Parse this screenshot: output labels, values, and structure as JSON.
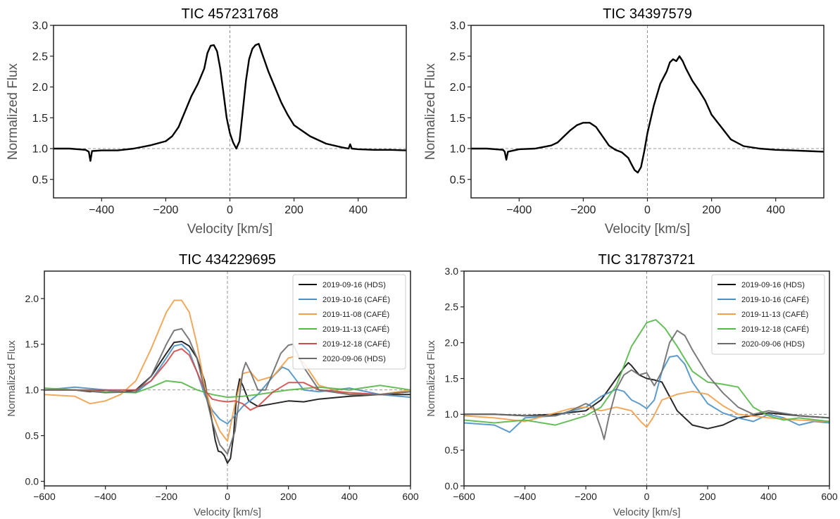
{
  "chart_data": [
    {
      "type": "line",
      "title": "TIC 457231768",
      "xlabel": "Velocity [km/s]",
      "ylabel": "Normalized Flux",
      "xlim": [
        -550,
        550
      ],
      "ylim": [
        0.2,
        3.0
      ],
      "xticks": [
        -400,
        -200,
        0,
        200,
        400
      ],
      "yticks": [
        0.5,
        1.0,
        1.5,
        2.0,
        2.5,
        3.0
      ],
      "xtick_labels": [
        "−400",
        "−200",
        "0",
        "200",
        "400"
      ],
      "ytick_labels": [
        "0.5",
        "1.0",
        "1.5",
        "2.0",
        "2.5",
        "3.0"
      ],
      "reference_lines": {
        "x": 0,
        "y": 1.0
      },
      "grid": false,
      "legend": "none",
      "series": [
        {
          "color": "#000000",
          "x": [
            -550,
            -500,
            -450,
            -440,
            -435,
            -430,
            -400,
            -350,
            -300,
            -250,
            -200,
            -180,
            -160,
            -140,
            -120,
            -100,
            -80,
            -70,
            -60,
            -50,
            -40,
            -30,
            -20,
            -10,
            0,
            10,
            20,
            30,
            40,
            50,
            60,
            70,
            80,
            90,
            100,
            110,
            120,
            140,
            160,
            180,
            200,
            250,
            300,
            350,
            370,
            375,
            380,
            400,
            450,
            500,
            550
          ],
          "y": [
            1.0,
            1.0,
            0.98,
            0.95,
            0.8,
            0.96,
            0.97,
            0.97,
            1.0,
            1.05,
            1.12,
            1.2,
            1.35,
            1.6,
            1.85,
            2.05,
            2.3,
            2.55,
            2.67,
            2.68,
            2.58,
            2.3,
            1.9,
            1.5,
            1.25,
            1.1,
            1.0,
            1.12,
            1.6,
            2.1,
            2.45,
            2.62,
            2.68,
            2.7,
            2.55,
            2.4,
            2.25,
            2.0,
            1.75,
            1.55,
            1.38,
            1.2,
            1.08,
            1.02,
            1.0,
            1.07,
            1.0,
            0.99,
            0.98,
            0.98,
            0.97
          ]
        }
      ]
    },
    {
      "type": "line",
      "title": "TIC 34397579",
      "xlabel": "Velocity [km/s]",
      "ylabel": "Normalized Flux",
      "xlim": [
        -550,
        550
      ],
      "ylim": [
        0.2,
        3.0
      ],
      "xticks": [
        -400,
        -200,
        0,
        200,
        400
      ],
      "yticks": [
        0.5,
        1.0,
        1.5,
        2.0,
        2.5,
        3.0
      ],
      "xtick_labels": [
        "−400",
        "−200",
        "0",
        "200",
        "400"
      ],
      "ytick_labels": [
        "0.5",
        "1.0",
        "1.5",
        "2.0",
        "2.5",
        "3.0"
      ],
      "reference_lines": {
        "x": 0,
        "y": 1.0
      },
      "grid": false,
      "legend": "none",
      "series": [
        {
          "color": "#000000",
          "x": [
            -550,
            -500,
            -450,
            -445,
            -440,
            -435,
            -400,
            -350,
            -300,
            -280,
            -260,
            -240,
            -220,
            -200,
            -180,
            -160,
            -140,
            -120,
            -100,
            -80,
            -60,
            -50,
            -40,
            -30,
            -20,
            -10,
            0,
            20,
            40,
            60,
            70,
            80,
            90,
            100,
            110,
            120,
            140,
            160,
            180,
            200,
            230,
            260,
            300,
            350,
            400,
            450,
            500,
            550
          ],
          "y": [
            1.0,
            1.0,
            0.98,
            0.95,
            0.82,
            0.95,
            0.99,
            1.0,
            1.05,
            1.1,
            1.2,
            1.3,
            1.38,
            1.42,
            1.42,
            1.35,
            1.2,
            1.05,
            0.98,
            0.94,
            0.85,
            0.75,
            0.65,
            0.61,
            0.7,
            0.95,
            1.25,
            1.7,
            2.05,
            2.25,
            2.4,
            2.45,
            2.42,
            2.5,
            2.42,
            2.3,
            2.1,
            1.95,
            1.78,
            1.55,
            1.35,
            1.15,
            1.04,
            1.0,
            0.98,
            0.97,
            0.96,
            0.95
          ]
        }
      ]
    },
    {
      "type": "line",
      "title": "TIC 434229695",
      "xlabel": "Velocity [km/s]",
      "ylabel": "Normalized Flux",
      "xlim": [
        -600,
        600
      ],
      "ylim": [
        -0.05,
        2.3
      ],
      "xticks": [
        -600,
        -400,
        -200,
        0,
        200,
        400,
        600
      ],
      "yticks": [
        0.0,
        0.5,
        1.0,
        1.5,
        2.0
      ],
      "xtick_labels": [
        "−600",
        "−400",
        "−200",
        "0",
        "200",
        "400",
        "600"
      ],
      "ytick_labels": [
        "0.0",
        "0.5",
        "1.0",
        "1.5",
        "2.0"
      ],
      "reference_lines": {
        "x": 0,
        "y": 1.0
      },
      "grid": false,
      "legend": "top-right",
      "series": [
        {
          "name": "2019-09-16 (HDS)",
          "color": "#111111",
          "x": [
            -600,
            -500,
            -450,
            -400,
            -350,
            -300,
            -250,
            -200,
            -175,
            -150,
            -125,
            -100,
            -75,
            -50,
            -40,
            -30,
            -20,
            -10,
            0,
            10,
            20,
            30,
            40,
            50,
            70,
            100,
            150,
            200,
            250,
            300,
            400,
            500,
            600
          ],
          "y": [
            1.0,
            1.0,
            0.98,
            1.0,
            0.98,
            1.0,
            1.15,
            1.4,
            1.52,
            1.53,
            1.48,
            1.35,
            1.1,
            0.65,
            0.45,
            0.33,
            0.32,
            0.28,
            0.2,
            0.25,
            0.5,
            0.95,
            1.12,
            1.05,
            0.88,
            0.82,
            0.85,
            0.88,
            0.87,
            0.9,
            0.93,
            0.95,
            0.95
          ]
        },
        {
          "name": "2019-10-16 (CAFÉ)",
          "color": "#4a90c4",
          "x": [
            -600,
            -500,
            -400,
            -300,
            -250,
            -200,
            -175,
            -150,
            -125,
            -100,
            -75,
            -50,
            -25,
            0,
            25,
            50,
            100,
            150,
            180,
            200,
            250,
            300,
            400,
            500,
            600
          ],
          "y": [
            1.0,
            1.03,
            1.0,
            0.97,
            1.1,
            1.35,
            1.48,
            1.5,
            1.42,
            1.2,
            0.95,
            0.78,
            0.68,
            0.63,
            0.72,
            0.82,
            0.95,
            1.15,
            1.25,
            1.22,
            1.0,
            0.98,
            1.02,
            0.95,
            0.92
          ]
        },
        {
          "name": "2019-11-08 (CAFÉ)",
          "color": "#f0a04b",
          "x": [
            -600,
            -500,
            -450,
            -400,
            -350,
            -300,
            -250,
            -200,
            -175,
            -150,
            -125,
            -100,
            -75,
            -50,
            -25,
            0,
            25,
            50,
            75,
            100,
            150,
            200,
            225,
            250,
            300,
            400,
            500,
            600
          ],
          "y": [
            0.95,
            0.93,
            0.85,
            0.88,
            0.95,
            1.1,
            1.45,
            1.85,
            1.98,
            1.98,
            1.85,
            1.5,
            1.05,
            0.75,
            0.55,
            0.44,
            0.85,
            1.18,
            1.2,
            1.1,
            1.15,
            1.35,
            1.37,
            1.3,
            1.05,
            0.95,
            0.95,
            1.0
          ]
        },
        {
          "name": "2019-11-13 (CAFÉ)",
          "color": "#55b848",
          "x": [
            -600,
            -500,
            -400,
            -300,
            -250,
            -200,
            -150,
            -100,
            -50,
            0,
            50,
            100,
            200,
            300,
            400,
            500,
            600
          ],
          "y": [
            1.02,
            1.0,
            0.98,
            0.97,
            1.03,
            1.1,
            1.08,
            1.0,
            0.95,
            0.92,
            0.93,
            0.95,
            1.0,
            1.03,
            1.0,
            1.05,
            1.0
          ]
        },
        {
          "name": "2019-12-18 (CAFÉ)",
          "color": "#d24a4a",
          "x": [
            -600,
            -500,
            -400,
            -300,
            -250,
            -200,
            -175,
            -150,
            -125,
            -100,
            -75,
            -50,
            -25,
            0,
            25,
            50,
            75,
            100,
            150,
            200,
            250,
            300,
            400,
            500,
            600
          ],
          "y": [
            1.0,
            1.0,
            1.0,
            1.0,
            1.1,
            1.3,
            1.42,
            1.45,
            1.38,
            1.2,
            1.0,
            0.9,
            0.88,
            0.87,
            0.88,
            0.85,
            0.78,
            0.82,
            0.98,
            1.08,
            1.08,
            1.0,
            0.97,
            0.95,
            0.98
          ]
        },
        {
          "name": "2020-09-06 (HDS)",
          "color": "#6b6b6b",
          "x": [
            -600,
            -500,
            -400,
            -300,
            -250,
            -200,
            -175,
            -150,
            -125,
            -100,
            -75,
            -50,
            -25,
            0,
            25,
            50,
            60,
            75,
            100,
            125,
            150,
            175,
            200,
            215,
            250,
            300,
            400,
            500,
            600
          ],
          "y": [
            1.0,
            1.0,
            0.97,
            0.98,
            1.15,
            1.5,
            1.65,
            1.67,
            1.55,
            1.35,
            1.0,
            0.65,
            0.4,
            0.3,
            0.55,
            1.2,
            1.3,
            1.2,
            1.0,
            1.0,
            1.2,
            1.4,
            1.49,
            1.5,
            1.25,
            1.0,
            0.95,
            0.95,
            0.98
          ]
        }
      ]
    },
    {
      "type": "line",
      "title": "TIC 317873721",
      "xlabel": "Velocity [km/s]",
      "ylabel": "Normalized Flux",
      "xlim": [
        -600,
        600
      ],
      "ylim": [
        0.0,
        3.0
      ],
      "xticks": [
        -600,
        -400,
        -200,
        0,
        200,
        400,
        600
      ],
      "yticks": [
        0.0,
        0.5,
        1.0,
        1.5,
        2.0,
        2.5,
        3.0
      ],
      "xtick_labels": [
        "−600",
        "−400",
        "−200",
        "0",
        "200",
        "400",
        "600"
      ],
      "ytick_labels": [
        "0.0",
        "0.5",
        "1.0",
        "1.5",
        "2.0",
        "2.5",
        "3.0"
      ],
      "reference_lines": {
        "x": 0,
        "y": 1.0
      },
      "grid": false,
      "legend": "top-right",
      "series": [
        {
          "name": "2019-09-16 (HDS)",
          "color": "#111111",
          "x": [
            -600,
            -500,
            -400,
            -300,
            -200,
            -150,
            -100,
            -75,
            -60,
            -50,
            -25,
            0,
            25,
            50,
            75,
            100,
            150,
            200,
            250,
            300,
            400,
            500,
            600
          ],
          "y": [
            1.0,
            1.0,
            0.98,
            1.0,
            1.05,
            1.2,
            1.5,
            1.65,
            1.72,
            1.68,
            1.55,
            1.5,
            1.48,
            1.45,
            1.25,
            1.05,
            0.85,
            0.8,
            0.85,
            0.95,
            1.02,
            0.98,
            0.95
          ]
        },
        {
          "name": "2019-10-16 (CAFÉ)",
          "color": "#4a90c4",
          "x": [
            -600,
            -500,
            -450,
            -400,
            -300,
            -200,
            -150,
            -100,
            -75,
            -50,
            -25,
            0,
            25,
            50,
            75,
            100,
            125,
            150,
            200,
            250,
            300,
            350,
            400,
            450,
            500,
            550,
            600
          ],
          "y": [
            0.88,
            0.85,
            0.75,
            0.95,
            0.98,
            1.1,
            1.25,
            1.35,
            1.32,
            1.2,
            1.15,
            1.08,
            1.2,
            1.6,
            1.8,
            1.82,
            1.7,
            1.45,
            1.15,
            1.02,
            0.95,
            0.9,
            1.0,
            0.95,
            0.85,
            0.9,
            0.88
          ]
        },
        {
          "name": "2019-11-13 (CAFÉ)",
          "color": "#f0a04b",
          "x": [
            -600,
            -500,
            -400,
            -300,
            -250,
            -200,
            -150,
            -100,
            -50,
            -20,
            0,
            20,
            50,
            100,
            150,
            200,
            250,
            300,
            400,
            500,
            600
          ],
          "y": [
            0.98,
            0.95,
            0.9,
            1.02,
            1.08,
            1.1,
            1.05,
            1.1,
            1.05,
            0.9,
            0.82,
            0.95,
            1.2,
            1.28,
            1.32,
            1.28,
            1.12,
            1.0,
            0.95,
            0.92,
            0.9
          ]
        },
        {
          "name": "2019-12-18 (CAFÉ)",
          "color": "#55b848",
          "x": [
            -600,
            -500,
            -400,
            -300,
            -200,
            -150,
            -100,
            -50,
            0,
            30,
            60,
            100,
            150,
            200,
            250,
            300,
            350,
            400,
            450,
            500,
            600
          ],
          "y": [
            0.92,
            0.88,
            0.92,
            0.85,
            0.98,
            1.1,
            1.4,
            1.95,
            2.28,
            2.32,
            2.2,
            1.95,
            1.6,
            1.45,
            1.42,
            1.38,
            1.1,
            0.98,
            0.92,
            0.95,
            0.9
          ]
        },
        {
          "name": "2020-09-06 (HDS)",
          "color": "#6b6b6b",
          "x": [
            -600,
            -500,
            -400,
            -300,
            -250,
            -200,
            -175,
            -150,
            -140,
            -125,
            -100,
            -75,
            -50,
            -25,
            0,
            25,
            50,
            75,
            100,
            125,
            150,
            200,
            250,
            300,
            350,
            400,
            500,
            600
          ],
          "y": [
            1.0,
            1.0,
            0.98,
            0.98,
            1.05,
            1.15,
            1.1,
            0.8,
            0.65,
            0.95,
            1.35,
            1.55,
            1.62,
            1.55,
            1.58,
            1.4,
            1.6,
            2.0,
            2.17,
            2.1,
            1.9,
            1.55,
            1.3,
            1.1,
            1.0,
            1.05,
            0.98,
            0.95
          ]
        }
      ]
    }
  ]
}
